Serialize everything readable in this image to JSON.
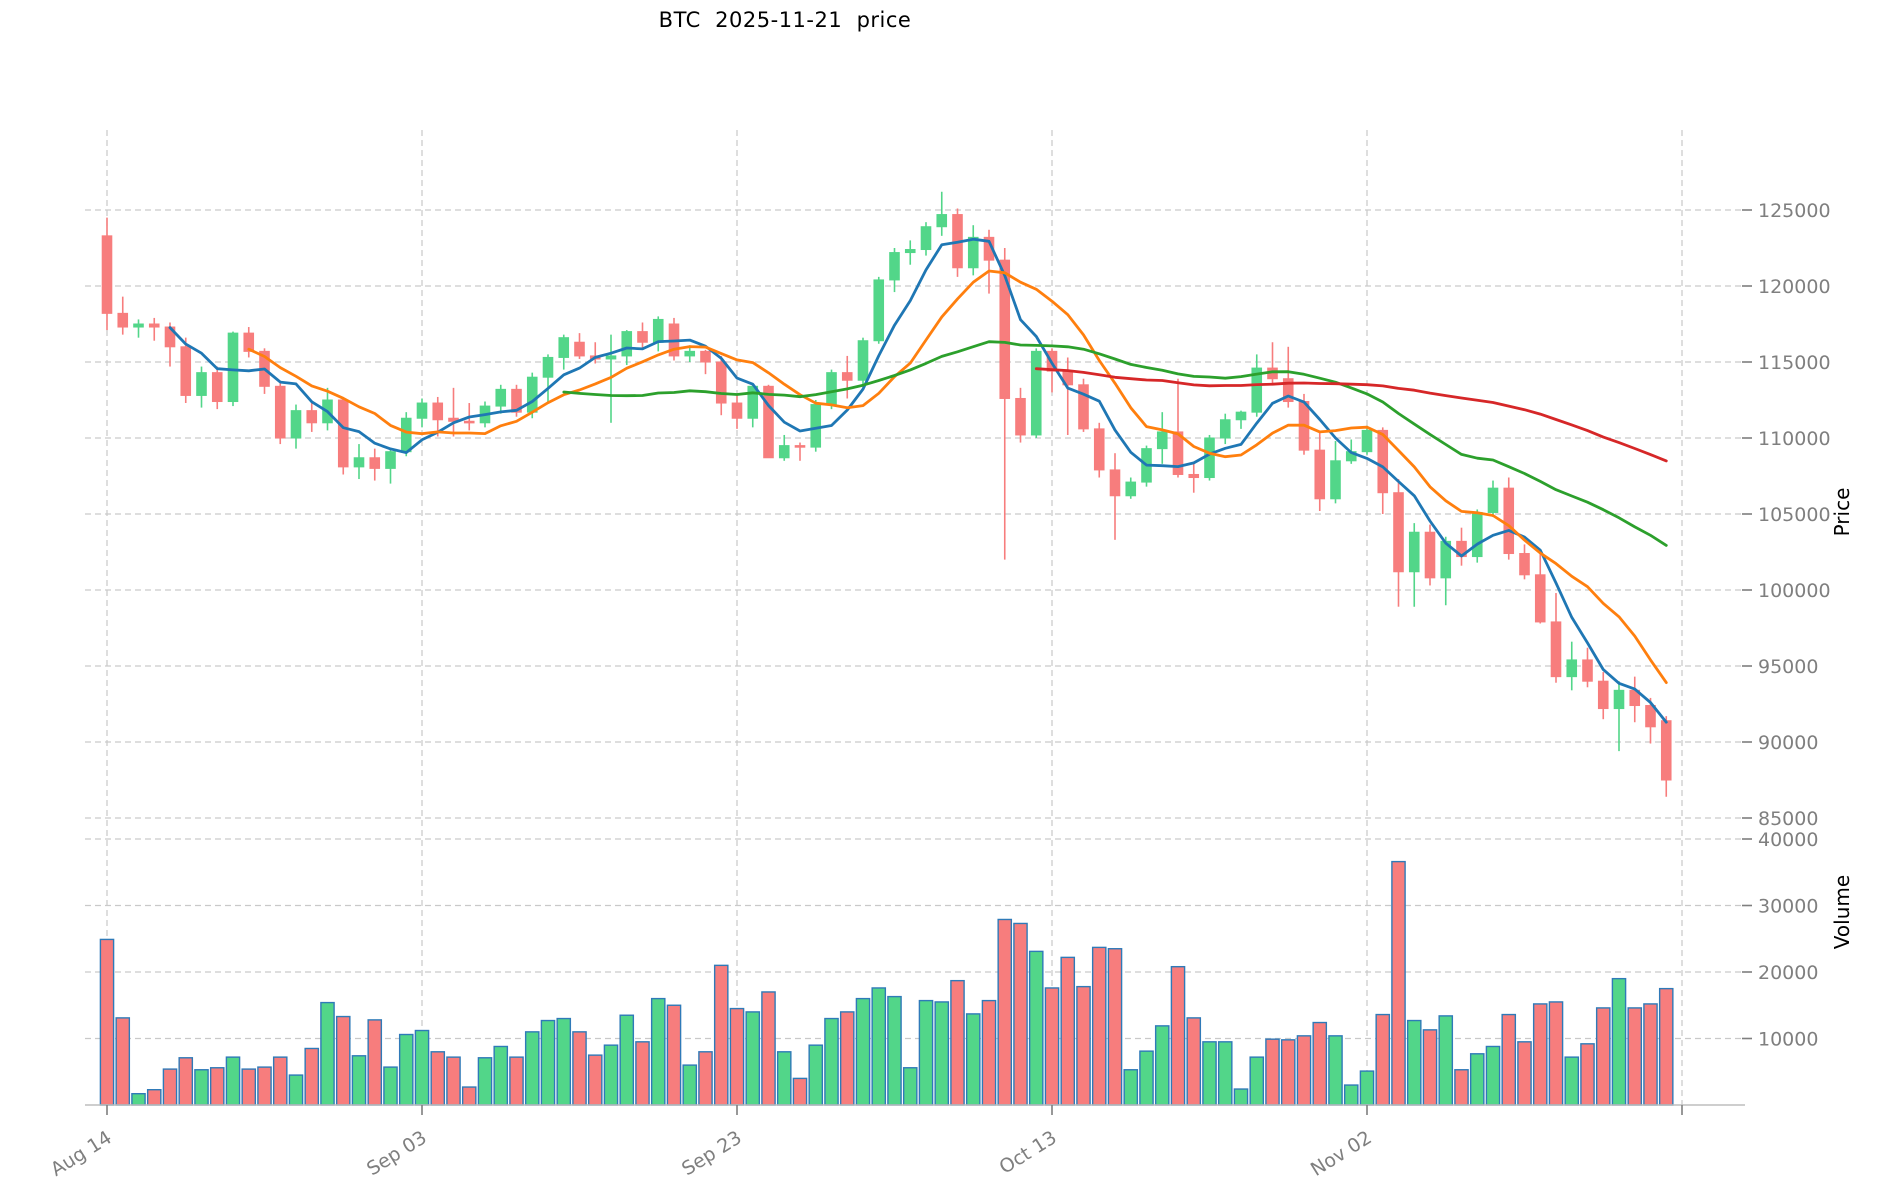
{
  "title": "BTC  2025-11-21  price",
  "axes": {
    "price_label": "Price",
    "volume_label": "Volume",
    "price_ticks": [
      85000,
      90000,
      95000,
      100000,
      105000,
      110000,
      115000,
      120000,
      125000
    ],
    "volume_ticks": [
      10000,
      20000,
      30000,
      40000
    ],
    "x_ticks": [
      {
        "index": 0,
        "label": "Aug 14"
      },
      {
        "index": 20,
        "label": "Sep 03"
      },
      {
        "index": 40,
        "label": "Sep 23"
      },
      {
        "index": 60,
        "label": "Oct 13"
      },
      {
        "index": 80,
        "label": "Nov 02"
      },
      {
        "index": 100,
        "label": ""
      }
    ]
  },
  "chart_data": {
    "type": "candlestick",
    "title": "BTC  2025-11-21  price",
    "xlabel": "",
    "ylabel": "Price",
    "ylabel2": "Volume",
    "price_range": [
      84500,
      130500
    ],
    "volume_range": [
      0,
      44500
    ],
    "grid": true,
    "up_color": "#52d689",
    "down_color": "#f77d7d",
    "volume_edge_color": "#2f7ab8",
    "moving_averages": [
      {
        "period": 5,
        "color": "#1f77b4",
        "name": "mav5"
      },
      {
        "period": 10,
        "color": "#ff7f0e",
        "name": "mav10"
      },
      {
        "period": 30,
        "color": "#2ca02c",
        "name": "mav30"
      },
      {
        "period": 60,
        "color": "#d62728",
        "name": "mav60"
      }
    ],
    "columns": [
      "date",
      "open",
      "high",
      "low",
      "close",
      "volume"
    ],
    "ohlcv": [
      [
        "2025-08-14",
        123300,
        124500,
        117100,
        118200,
        24900
      ],
      [
        "2025-08-15",
        118200,
        119300,
        116800,
        117300,
        13100
      ],
      [
        "2025-08-16",
        117300,
        117800,
        116600,
        117500,
        1700
      ],
      [
        "2025-08-17",
        117500,
        117900,
        116400,
        117300,
        2300
      ],
      [
        "2025-08-18",
        117300,
        117600,
        114700,
        116000,
        5400
      ],
      [
        "2025-08-19",
        116000,
        116600,
        112300,
        112800,
        7100
      ],
      [
        "2025-08-20",
        112800,
        114700,
        112000,
        114300,
        5300
      ],
      [
        "2025-08-21",
        114300,
        114700,
        111900,
        112400,
        5600
      ],
      [
        "2025-08-22",
        112400,
        117000,
        112100,
        116900,
        7200
      ],
      [
        "2025-08-23",
        116900,
        117300,
        115300,
        115700,
        5400
      ],
      [
        "2025-08-24",
        115700,
        115900,
        112900,
        113400,
        5700
      ],
      [
        "2025-08-25",
        113400,
        113600,
        109600,
        110000,
        7200
      ],
      [
        "2025-08-26",
        110000,
        112200,
        109300,
        111800,
        4500
      ],
      [
        "2025-08-27",
        111800,
        112400,
        110400,
        111000,
        8500
      ],
      [
        "2025-08-28",
        111000,
        113300,
        110500,
        112500,
        15400
      ],
      [
        "2025-08-29",
        112500,
        112700,
        107600,
        108100,
        13300
      ],
      [
        "2025-08-30",
        108100,
        109600,
        107300,
        108700,
        7400
      ],
      [
        "2025-08-31",
        108700,
        109300,
        107200,
        108000,
        12800
      ],
      [
        "2025-09-01",
        108000,
        109300,
        107000,
        109100,
        5700
      ],
      [
        "2025-09-02",
        109100,
        111700,
        108800,
        111300,
        10600
      ],
      [
        "2025-09-03",
        111300,
        112600,
        110700,
        112300,
        11200
      ],
      [
        "2025-09-04",
        112300,
        112700,
        110100,
        111200,
        8000
      ],
      [
        "2025-09-05",
        111300,
        113300,
        110100,
        111100,
        7200
      ],
      [
        "2025-09-06",
        111100,
        112300,
        110500,
        111000,
        2700
      ],
      [
        "2025-09-07",
        111000,
        112400,
        110700,
        112100,
        7100
      ],
      [
        "2025-09-08",
        112100,
        113500,
        111600,
        113200,
        8800
      ],
      [
        "2025-09-09",
        113200,
        113500,
        111400,
        111700,
        7200
      ],
      [
        "2025-09-10",
        111700,
        114300,
        111300,
        114000,
        11000
      ],
      [
        "2025-09-11",
        114000,
        115500,
        112300,
        115300,
        12700
      ],
      [
        "2025-09-12",
        115300,
        116800,
        114500,
        116600,
        13000
      ],
      [
        "2025-09-13",
        116300,
        116900,
        115200,
        115400,
        11000
      ],
      [
        "2025-09-14",
        115400,
        116300,
        114900,
        115200,
        7500
      ],
      [
        "2025-09-15",
        115200,
        116800,
        111000,
        115400,
        9000
      ],
      [
        "2025-09-16",
        115400,
        117100,
        114800,
        117000,
        13500
      ],
      [
        "2025-09-17",
        117000,
        117600,
        115800,
        116300,
        9500
      ],
      [
        "2025-09-18",
        116300,
        118000,
        115700,
        117800,
        16000
      ],
      [
        "2025-09-19",
        117500,
        117900,
        115100,
        115400,
        15000
      ],
      [
        "2025-09-20",
        115400,
        116100,
        115000,
        115700,
        6000
      ],
      [
        "2025-09-21",
        115700,
        115800,
        114200,
        115000,
        8000
      ],
      [
        "2025-09-22",
        115000,
        115400,
        111500,
        112300,
        21000
      ],
      [
        "2025-09-23",
        112300,
        112800,
        110600,
        111300,
        14500
      ],
      [
        "2025-09-24",
        111300,
        113500,
        110700,
        113400,
        14000
      ],
      [
        "2025-09-25",
        113400,
        113500,
        108800,
        108700,
        17000
      ],
      [
        "2025-09-26",
        108700,
        110200,
        108500,
        109500,
        8000
      ],
      [
        "2025-09-27",
        109500,
        109700,
        108500,
        109400,
        4000
      ],
      [
        "2025-09-28",
        109400,
        112500,
        109100,
        112200,
        9000
      ],
      [
        "2025-09-29",
        112200,
        114500,
        111900,
        114300,
        13000
      ],
      [
        "2025-09-30",
        114300,
        115400,
        112600,
        113800,
        14000
      ],
      [
        "2025-10-01",
        113800,
        116600,
        113500,
        116400,
        16000
      ],
      [
        "2025-10-02",
        116400,
        120600,
        116200,
        120400,
        17600
      ],
      [
        "2025-10-03",
        120400,
        122500,
        119600,
        122200,
        16300
      ],
      [
        "2025-10-04",
        122200,
        123000,
        121400,
        122400,
        5600
      ],
      [
        "2025-10-05",
        122400,
        124200,
        122000,
        123900,
        15700
      ],
      [
        "2025-10-06",
        123900,
        126200,
        123300,
        124700,
        15500
      ],
      [
        "2025-10-07",
        124700,
        125100,
        120600,
        121200,
        18700
      ],
      [
        "2025-10-08",
        121200,
        124000,
        120700,
        123200,
        13700
      ],
      [
        "2025-10-09",
        123200,
        123700,
        119500,
        121700,
        15700
      ],
      [
        "2025-10-10",
        121700,
        122500,
        102000,
        112600,
        27900
      ],
      [
        "2025-10-11",
        112600,
        113300,
        109700,
        110200,
        27300
      ],
      [
        "2025-10-12",
        110200,
        115900,
        110000,
        115700,
        23100
      ],
      [
        "2025-10-13",
        115700,
        115900,
        113000,
        114400,
        17600
      ],
      [
        "2025-10-14",
        114400,
        115300,
        110200,
        113500,
        22200
      ],
      [
        "2025-10-15",
        113500,
        113900,
        110400,
        110600,
        17800
      ],
      [
        "2025-10-16",
        110600,
        111000,
        107400,
        107900,
        23700
      ],
      [
        "2025-10-17",
        107900,
        109000,
        103300,
        106200,
        23500
      ],
      [
        "2025-10-18",
        106200,
        107400,
        106000,
        107100,
        5300
      ],
      [
        "2025-10-19",
        107100,
        109500,
        106800,
        109300,
        8100
      ],
      [
        "2025-10-20",
        109300,
        111700,
        108300,
        110400,
        11900
      ],
      [
        "2025-10-21",
        110400,
        113900,
        107400,
        107600,
        20800
      ],
      [
        "2025-10-22",
        107600,
        108300,
        106400,
        107400,
        13100
      ],
      [
        "2025-10-23",
        107400,
        110200,
        107200,
        110000,
        9500
      ],
      [
        "2025-10-24",
        110000,
        111600,
        109600,
        111200,
        9500
      ],
      [
        "2025-10-25",
        111200,
        111800,
        110600,
        111700,
        2400
      ],
      [
        "2025-10-26",
        111700,
        115500,
        111400,
        114600,
        7200
      ],
      [
        "2025-10-27",
        114600,
        116300,
        113600,
        113900,
        9900
      ],
      [
        "2025-10-28",
        113900,
        116000,
        112000,
        112400,
        9800
      ],
      [
        "2025-10-29",
        112400,
        112900,
        108900,
        109200,
        10400
      ],
      [
        "2025-10-30",
        109200,
        110400,
        105200,
        106000,
        12400
      ],
      [
        "2025-10-31",
        106000,
        109800,
        105700,
        108500,
        10400
      ],
      [
        "2025-11-01",
        108500,
        109900,
        108300,
        109100,
        3000
      ],
      [
        "2025-11-02",
        109100,
        110800,
        108900,
        110500,
        5100
      ],
      [
        "2025-11-03",
        110500,
        110700,
        105000,
        106400,
        13600
      ],
      [
        "2025-11-04",
        106400,
        107300,
        98900,
        101200,
        36600
      ],
      [
        "2025-11-05",
        101200,
        104400,
        98900,
        103800,
        12700
      ],
      [
        "2025-11-06",
        103800,
        104300,
        100300,
        100800,
        11300
      ],
      [
        "2025-11-07",
        100800,
        103500,
        99000,
        103200,
        13400
      ],
      [
        "2025-11-08",
        103200,
        104100,
        101600,
        102200,
        5300
      ],
      [
        "2025-11-09",
        102200,
        105300,
        101800,
        105100,
        7700
      ],
      [
        "2025-11-10",
        105100,
        107200,
        104800,
        106700,
        8800
      ],
      [
        "2025-11-11",
        106700,
        107400,
        102000,
        102400,
        13600
      ],
      [
        "2025-11-12",
        102400,
        103000,
        100700,
        101000,
        9500
      ],
      [
        "2025-11-13",
        101000,
        102600,
        97800,
        97900,
        15200
      ],
      [
        "2025-11-14",
        97900,
        99800,
        93900,
        94300,
        15500
      ],
      [
        "2025-11-15",
        94300,
        96600,
        93400,
        95400,
        7200
      ],
      [
        "2025-11-16",
        95400,
        96200,
        93600,
        94000,
        9200
      ],
      [
        "2025-11-17",
        94000,
        94600,
        91500,
        92200,
        14600
      ],
      [
        "2025-11-18",
        92200,
        94000,
        89400,
        93400,
        19000
      ],
      [
        "2025-11-19",
        93400,
        94300,
        91300,
        92400,
        14600
      ],
      [
        "2025-11-20",
        92400,
        92900,
        89900,
        91000,
        15200
      ],
      [
        "2025-11-21",
        91400,
        91700,
        86400,
        87500,
        17500
      ]
    ]
  }
}
